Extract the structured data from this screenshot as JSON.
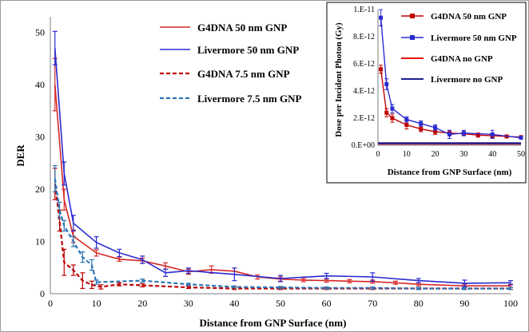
{
  "chart_data": [
    {
      "id": "main",
      "type": "line",
      "xlabel": "Distance from GNP Surface (nm)",
      "ylabel": "DER",
      "xlim": [
        0,
        100
      ],
      "ylim": [
        0,
        53
      ],
      "x_ticks": [
        0,
        10,
        20,
        30,
        40,
        50,
        60,
        70,
        80,
        90,
        100
      ],
      "y_ticks": [
        0,
        10,
        20,
        30,
        40,
        50
      ],
      "legend_position": "top-right",
      "series": [
        {
          "name": "G4DNA 50 nm GNP",
          "color": "#d62728",
          "dash": "solid",
          "x": [
            1,
            3,
            5,
            10,
            15,
            20,
            25,
            30,
            35,
            40,
            45,
            50,
            55,
            60,
            65,
            70,
            75,
            80,
            90,
            100
          ],
          "y": [
            40,
            18,
            11,
            7.8,
            6.6,
            6.3,
            5.3,
            4.2,
            4.6,
            4.3,
            3.2,
            2.8,
            2.6,
            2.5,
            2.4,
            2.3,
            2.1,
            1.8,
            1.5,
            1.5
          ],
          "err": [
            5,
            2,
            1.2,
            0.6,
            0.4,
            0.5,
            0.6,
            0.5,
            0.7,
            0.6,
            0.4,
            0.4,
            0.3,
            0.3,
            0.3,
            0.3,
            0.3,
            0.3,
            0.3,
            0.3
          ]
        },
        {
          "name": "Livermore 50 nm GNP",
          "color": "#2b2bd0",
          "dash": "solid",
          "x": [
            1,
            3,
            5,
            10,
            15,
            20,
            25,
            30,
            40,
            50,
            60,
            70,
            80,
            90,
            100
          ],
          "y": [
            47,
            23,
            13.5,
            9.8,
            7.8,
            6.5,
            4.0,
            4.4,
            3.7,
            2.9,
            3.4,
            3.2,
            2.5,
            2.0,
            2.1
          ],
          "err": [
            3.2,
            2.2,
            1.5,
            1.1,
            0.7,
            0.7,
            0.7,
            0.5,
            1.2,
            0.6,
            0.5,
            0.8,
            0.4,
            0.6,
            0.4
          ]
        },
        {
          "name": "G4DNA 7.5 nm GNP",
          "color": "#c00000",
          "dash": "dashed",
          "x": [
            1,
            2,
            3,
            5,
            7,
            9,
            11,
            15,
            20,
            30,
            40,
            50,
            60,
            70,
            80,
            90,
            100
          ],
          "y": [
            21,
            14,
            6,
            4.5,
            2.5,
            1.7,
            1.3,
            1.8,
            1.6,
            1.2,
            1.0,
            1.0,
            1.0,
            1.0,
            1.0,
            1.0,
            1.0
          ],
          "err": [
            3,
            2,
            2.5,
            1,
            1.5,
            0.7,
            0.4,
            0.3,
            0.3,
            0.2,
            0.2,
            0.2,
            0.2,
            0.2,
            0.2,
            0.2,
            0.2
          ]
        },
        {
          "name": "Livermore 7.5 nm GNP",
          "color": "#2e75b6",
          "dash": "dashed",
          "x": [
            1,
            2,
            3,
            5,
            7,
            9,
            10,
            20,
            30,
            40,
            50,
            60,
            70,
            80,
            90,
            100
          ],
          "y": [
            22,
            16,
            13,
            10,
            7,
            5.5,
            2.2,
            2.5,
            1.8,
            1.3,
            1.2,
            1.1,
            1.1,
            1.0,
            1.0,
            1.0
          ],
          "err": [
            2.5,
            1.5,
            1,
            1,
            1,
            1,
            0.4,
            0.3,
            0.2,
            0.2,
            0.2,
            0.2,
            0.2,
            0.2,
            0.2,
            0.2
          ]
        }
      ]
    },
    {
      "id": "inset",
      "type": "line",
      "xlabel": "Distance from GNP Surface (nm)",
      "ylabel": "Dose per Incident Photon (Gy)",
      "xlim": [
        0,
        50
      ],
      "ylim": [
        0,
        1e-11
      ],
      "x_ticks": [
        0,
        10,
        20,
        30,
        40,
        50
      ],
      "y_ticks": [
        0,
        2e-12,
        4e-12,
        6e-12,
        8e-12,
        1e-11
      ],
      "y_tick_labels": [
        "0.E+00",
        "2.E-12",
        "4.E-12",
        "6.E-12",
        "8.E-12",
        "1.E-11"
      ],
      "legend_position": "top-right",
      "series": [
        {
          "name": "G4DNA 50 nm GNP",
          "color": "#c00000",
          "marker": "square",
          "x": [
            1,
            3,
            5,
            10,
            15,
            20,
            25,
            30,
            35,
            40,
            45,
            50
          ],
          "y": [
            5.6e-12,
            2.4e-12,
            2e-12,
            1.5e-12,
            1.2e-12,
            1e-12,
            9e-13,
            8.5e-13,
            7.5e-13,
            7e-13,
            6.5e-13,
            6e-13
          ],
          "err": [
            3e-13,
            3e-13,
            3e-13,
            3e-13,
            2e-13,
            2e-13,
            2e-13,
            1.5e-13,
            1.5e-13,
            1.5e-13,
            1e-13,
            1e-13
          ]
        },
        {
          "name": "Livermore 50 nm GNP",
          "color": "#2b2bd0",
          "marker": "square",
          "x": [
            1,
            3,
            5,
            10,
            15,
            20,
            25,
            30,
            40,
            50
          ],
          "y": [
            9.4e-12,
            4.5e-12,
            2.7e-12,
            1.9e-12,
            1.6e-12,
            1.3e-12,
            8e-13,
            9e-13,
            8e-13,
            5.5e-13
          ],
          "err": [
            6e-13,
            4e-13,
            3e-13,
            2e-13,
            2e-13,
            2e-13,
            3e-13,
            2e-13,
            3e-13,
            1e-13
          ]
        },
        {
          "name": "G4DNA no GNP",
          "color": "#e81010",
          "marker": "none",
          "x": [
            0,
            50
          ],
          "y": [
            1.2e-13,
            1.2e-13
          ],
          "err": []
        },
        {
          "name": "Livermore no GNP",
          "color": "#1f1f8f",
          "marker": "none",
          "x": [
            0,
            50
          ],
          "y": [
            1.5e-13,
            1.5e-13
          ],
          "err": []
        }
      ]
    }
  ]
}
